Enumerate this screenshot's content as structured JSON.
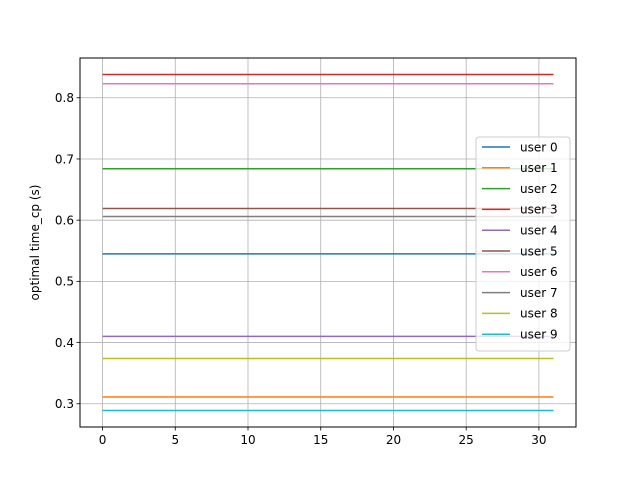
{
  "chart_data": {
    "type": "line",
    "title": "",
    "xlabel": "",
    "ylabel": "optimal time_cp (s)",
    "xlim": [
      -1.55,
      32.55
    ],
    "ylim": [
      0.262,
      0.865
    ],
    "x_range": [
      0,
      31
    ],
    "xticks": [
      0,
      5,
      10,
      15,
      20,
      25,
      30
    ],
    "yticks": [
      0.3,
      0.4,
      0.5,
      0.6,
      0.7,
      0.8
    ],
    "grid": true,
    "legend_position": "right",
    "series": [
      {
        "name": "user 0",
        "value": 0.545,
        "color": "#1f77b4"
      },
      {
        "name": "user 1",
        "value": 0.311,
        "color": "#ff7f0e"
      },
      {
        "name": "user 2",
        "value": 0.684,
        "color": "#2ca02c"
      },
      {
        "name": "user 3",
        "value": 0.838,
        "color": "#d62728"
      },
      {
        "name": "user 4",
        "value": 0.41,
        "color": "#9467bd"
      },
      {
        "name": "user 5",
        "value": 0.619,
        "color": "#8c564b"
      },
      {
        "name": "user 6",
        "value": 0.823,
        "color": "#e377c2"
      },
      {
        "name": "user 7",
        "value": 0.606,
        "color": "#7f7f7f"
      },
      {
        "name": "user 8",
        "value": 0.374,
        "color": "#bcbd22"
      },
      {
        "name": "user 9",
        "value": 0.289,
        "color": "#17becf"
      }
    ]
  }
}
